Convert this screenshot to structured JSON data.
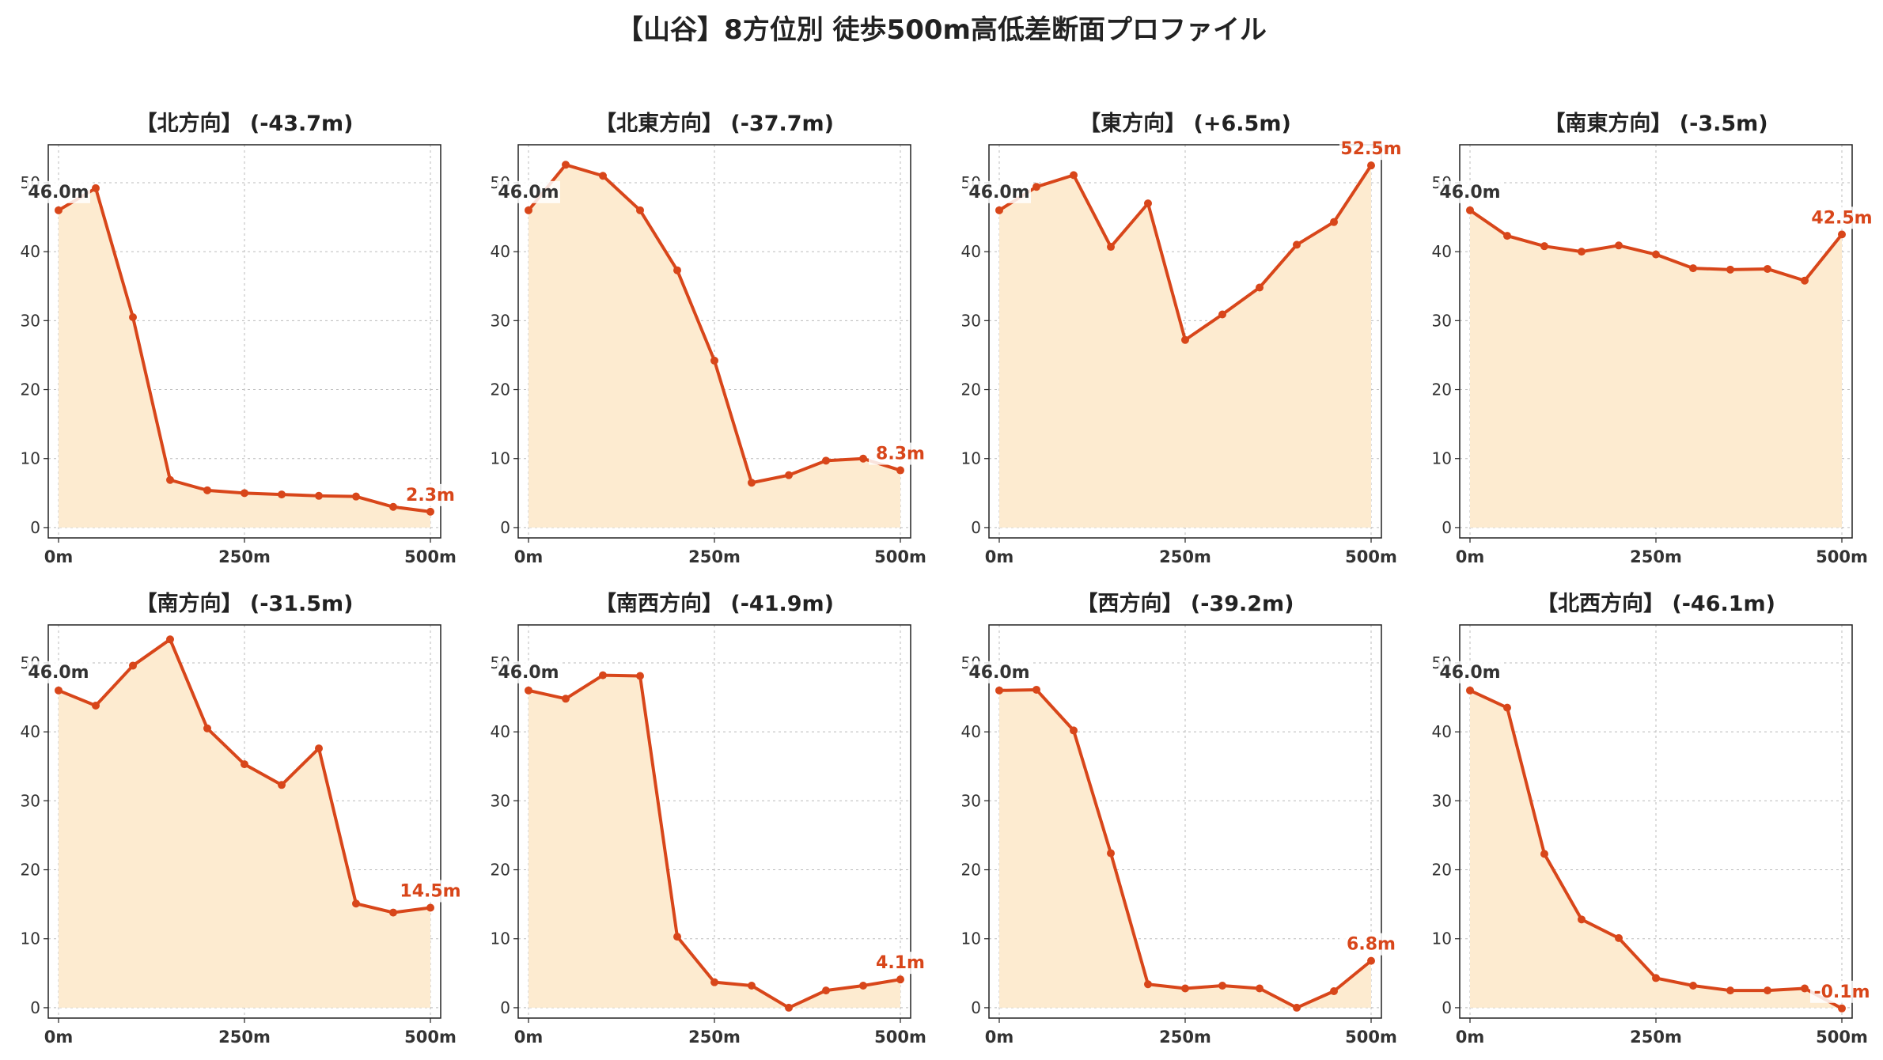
{
  "title": "【山谷】8方位別 徒歩500m高低差断面プロファイル",
  "colors": {
    "line": "#d8461a",
    "fill": "#fdebd0",
    "start_label": "#333333",
    "end_label": "#d8461a",
    "grid": "#bbbbbb"
  },
  "chart_data": [
    {
      "type": "area",
      "title": "【北方向】 (-43.7m)",
      "x": [
        0,
        50,
        100,
        150,
        200,
        250,
        300,
        350,
        400,
        450,
        500
      ],
      "y": [
        46.0,
        49.2,
        30.5,
        6.9,
        5.4,
        5.0,
        4.8,
        4.6,
        4.5,
        3.0,
        2.3
      ],
      "x_tick_labels": [
        "0m",
        "250m",
        "500m"
      ],
      "y_ticks": [
        0,
        10,
        20,
        30,
        40,
        50
      ],
      "start_label": "46.0m",
      "end_label": "2.3m",
      "ylim": [
        -1.5,
        55.5
      ],
      "grid": true
    },
    {
      "type": "area",
      "title": "【北東方向】 (-37.7m)",
      "x": [
        0,
        50,
        100,
        150,
        200,
        250,
        300,
        350,
        400,
        450,
        500
      ],
      "y": [
        46.0,
        52.6,
        51.0,
        46.0,
        37.3,
        24.2,
        6.5,
        7.6,
        9.7,
        10.0,
        8.3
      ],
      "x_tick_labels": [
        "0m",
        "250m",
        "500m"
      ],
      "y_ticks": [
        0,
        10,
        20,
        30,
        40,
        50
      ],
      "start_label": "46.0m",
      "end_label": "8.3m",
      "ylim": [
        -1.5,
        55.5
      ],
      "grid": true
    },
    {
      "type": "area",
      "title": "【東方向】 (+6.5m)",
      "x": [
        0,
        50,
        100,
        150,
        200,
        250,
        300,
        350,
        400,
        450,
        500
      ],
      "y": [
        46.0,
        49.4,
        51.1,
        40.7,
        47.0,
        27.2,
        30.9,
        34.8,
        41.0,
        44.3,
        52.5
      ],
      "x_tick_labels": [
        "0m",
        "250m",
        "500m"
      ],
      "y_ticks": [
        0,
        10,
        20,
        30,
        40,
        50
      ],
      "start_label": "46.0m",
      "end_label": "52.5m",
      "ylim": [
        -1.5,
        55.5
      ],
      "grid": true
    },
    {
      "type": "area",
      "title": "【南東方向】 (-3.5m)",
      "x": [
        0,
        50,
        100,
        150,
        200,
        250,
        300,
        350,
        400,
        450,
        500
      ],
      "y": [
        46.0,
        42.3,
        40.8,
        40.0,
        40.9,
        39.6,
        37.6,
        37.4,
        37.5,
        35.8,
        42.5
      ],
      "x_tick_labels": [
        "0m",
        "250m",
        "500m"
      ],
      "y_ticks": [
        0,
        10,
        20,
        30,
        40,
        50
      ],
      "start_label": "46.0m",
      "end_label": "42.5m",
      "ylim": [
        -1.5,
        55.5
      ],
      "grid": true
    },
    {
      "type": "area",
      "title": "【南方向】 (-31.5m)",
      "x": [
        0,
        50,
        100,
        150,
        200,
        250,
        300,
        350,
        400,
        450,
        500
      ],
      "y": [
        46.0,
        43.8,
        49.6,
        53.4,
        40.5,
        35.3,
        32.3,
        37.6,
        15.1,
        13.8,
        14.5
      ],
      "x_tick_labels": [
        "0m",
        "250m",
        "500m"
      ],
      "y_ticks": [
        0,
        10,
        20,
        30,
        40,
        50
      ],
      "start_label": "46.0m",
      "end_label": "14.5m",
      "ylim": [
        -1.5,
        55.5
      ],
      "grid": true
    },
    {
      "type": "area",
      "title": "【南西方向】 (-41.9m)",
      "x": [
        0,
        50,
        100,
        150,
        200,
        250,
        300,
        350,
        400,
        450,
        500
      ],
      "y": [
        46.0,
        44.8,
        48.2,
        48.1,
        10.3,
        3.7,
        3.2,
        0.0,
        2.5,
        3.2,
        4.1
      ],
      "x_tick_labels": [
        "0m",
        "250m",
        "500m"
      ],
      "y_ticks": [
        0,
        10,
        20,
        30,
        40,
        50
      ],
      "start_label": "46.0m",
      "end_label": "4.1m",
      "ylim": [
        -1.5,
        55.5
      ],
      "grid": true
    },
    {
      "type": "area",
      "title": "【西方向】 (-39.2m)",
      "x": [
        0,
        50,
        100,
        150,
        200,
        250,
        300,
        350,
        400,
        450,
        500
      ],
      "y": [
        46.0,
        46.1,
        40.2,
        22.4,
        3.4,
        2.8,
        3.2,
        2.8,
        0.0,
        2.4,
        6.8
      ],
      "x_tick_labels": [
        "0m",
        "250m",
        "500m"
      ],
      "y_ticks": [
        0,
        10,
        20,
        30,
        40,
        50
      ],
      "start_label": "46.0m",
      "end_label": "6.8m",
      "ylim": [
        -1.5,
        55.5
      ],
      "grid": true
    },
    {
      "type": "area",
      "title": "【北西方向】 (-46.1m)",
      "x": [
        0,
        50,
        100,
        150,
        200,
        250,
        300,
        350,
        400,
        450,
        500
      ],
      "y": [
        46.0,
        43.5,
        22.3,
        12.8,
        10.1,
        4.3,
        3.2,
        2.5,
        2.5,
        2.8,
        -0.1
      ],
      "x_tick_labels": [
        "0m",
        "250m",
        "500m"
      ],
      "y_ticks": [
        0,
        10,
        20,
        30,
        40,
        50
      ],
      "start_label": "46.0m",
      "end_label": "-0.1m",
      "ylim": [
        -1.5,
        55.5
      ],
      "grid": true
    }
  ]
}
